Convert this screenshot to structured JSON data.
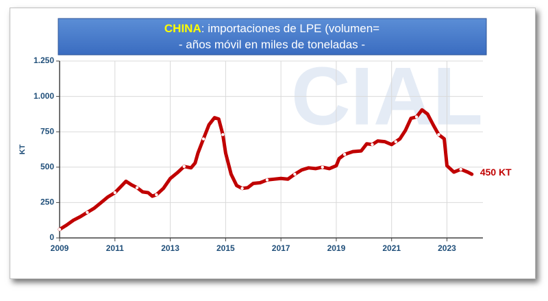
{
  "chart_data": {
    "type": "line",
    "title_highlight": "CHINA",
    "title": ": importaciones de LPE (volumen=",
    "subtitle": "- años móvil en miles de toneladas -",
    "watermark": "CIAL",
    "ylabel": "KT",
    "annotation": "450 KT",
    "xlim": [
      2009,
      2024.3
    ],
    "xticks": [
      2009,
      2011,
      2013,
      2015,
      2017,
      2019,
      2021,
      2023
    ],
    "ylim": [
      0,
      1250
    ],
    "yticks": [
      0,
      250,
      500,
      750,
      {
        "value": 1000,
        "label": "1.000"
      },
      {
        "value": 1250,
        "label": "1.250"
      }
    ],
    "grid": true,
    "series": [
      {
        "name": "China",
        "color": "#c00000",
        "x": [
          2009.0,
          2009.25,
          2009.5,
          2009.75,
          2010.0,
          2010.25,
          2010.5,
          2010.75,
          2011.0,
          2011.25,
          2011.4,
          2011.6,
          2011.8,
          2012.0,
          2012.2,
          2012.35,
          2012.5,
          2012.75,
          2013.0,
          2013.25,
          2013.5,
          2013.75,
          2013.9,
          2014.0,
          2014.2,
          2014.4,
          2014.6,
          2014.75,
          2014.9,
          2015.0,
          2015.2,
          2015.4,
          2015.6,
          2015.8,
          2016.0,
          2016.25,
          2016.5,
          2016.75,
          2017.0,
          2017.25,
          2017.5,
          2017.75,
          2018.0,
          2018.25,
          2018.5,
          2018.75,
          2019.0,
          2019.1,
          2019.3,
          2019.6,
          2019.9,
          2020.1,
          2020.3,
          2020.5,
          2020.75,
          2021.0,
          2021.15,
          2021.3,
          2021.5,
          2021.7,
          2021.9,
          2022.1,
          2022.3,
          2022.5,
          2022.7,
          2022.9,
          2023.0,
          2023.25,
          2023.5,
          2023.75,
          2023.9
        ],
        "values": [
          60,
          90,
          125,
          150,
          180,
          210,
          250,
          290,
          320,
          370,
          400,
          375,
          355,
          325,
          320,
          295,
          305,
          350,
          420,
          460,
          505,
          495,
          530,
          600,
          700,
          800,
          850,
          840,
          730,
          600,
          450,
          370,
          350,
          355,
          385,
          390,
          410,
          415,
          420,
          415,
          450,
          480,
          495,
          490,
          500,
          490,
          510,
          560,
          590,
          610,
          615,
          665,
          660,
          685,
          680,
          660,
          680,
          700,
          760,
          845,
          855,
          905,
          875,
          800,
          730,
          700,
          510,
          465,
          485,
          465,
          450
        ]
      }
    ]
  }
}
